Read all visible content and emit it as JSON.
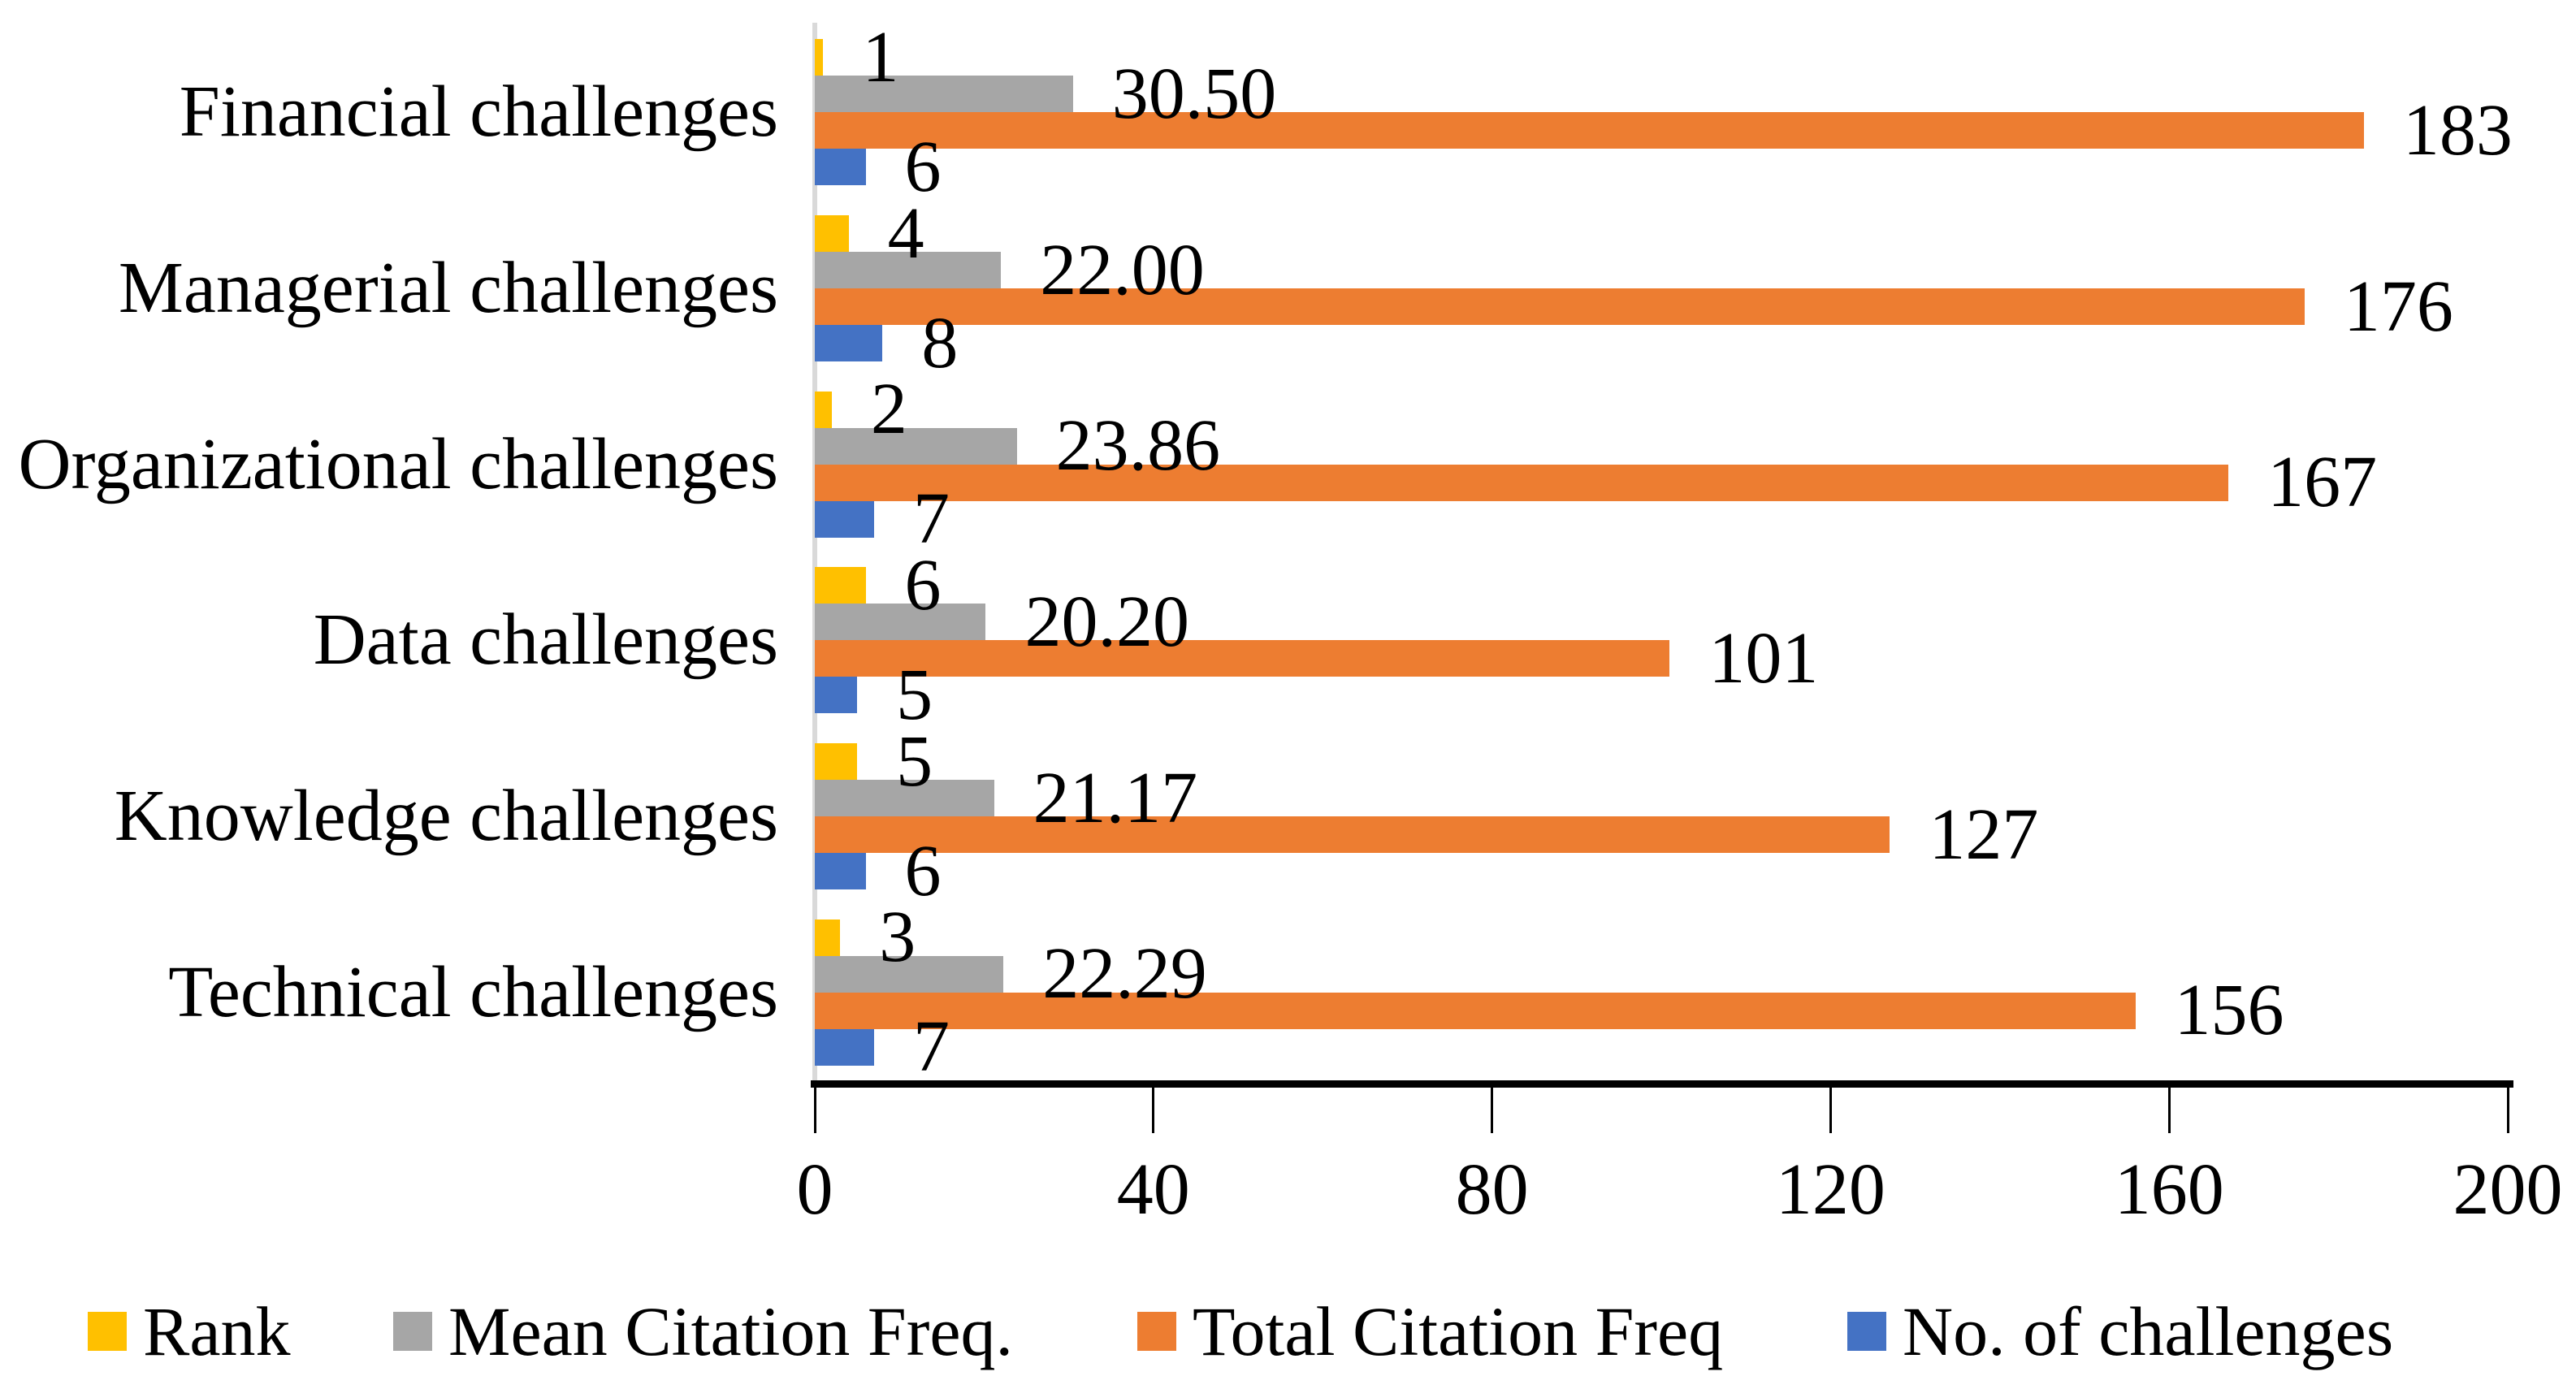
{
  "figure": {
    "background": "#FFFFFF",
    "text_color": "#000000"
  },
  "axes": {
    "x_axis_line_color": "#000000",
    "y_axis_line_color": "#D9D9D9",
    "tick_color": "#000000"
  },
  "chart_data": {
    "type": "bar",
    "orientation": "horizontal",
    "title": "",
    "xlabel": "",
    "ylabel": "",
    "xlim": [
      0,
      200
    ],
    "xticks": [
      "0",
      "40",
      "80",
      "120",
      "160",
      "200"
    ],
    "grid": false,
    "legend_position": "bottom",
    "categories": [
      "Financial challenges",
      "Managerial challenges",
      "Organizational challenges",
      "Data challenges",
      "Knowledge challenges",
      "Technical challenges"
    ],
    "series": [
      {
        "name": "Rank",
        "color": "#FFC000",
        "values": [
          1,
          4,
          2,
          6,
          5,
          3
        ],
        "labels": [
          "1",
          "4",
          "2",
          "6",
          "5",
          "3"
        ]
      },
      {
        "name": "Mean Citation Freq.",
        "color": "#A6A6A6",
        "values": [
          30.5,
          22.0,
          23.86,
          20.2,
          21.17,
          22.29
        ],
        "labels": [
          "30.50",
          "22.00",
          "23.86",
          "20.20",
          "21.17",
          "22.29"
        ]
      },
      {
        "name": "Total Citation Freq",
        "color": "#ED7D31",
        "values": [
          183,
          176,
          167,
          101,
          127,
          156
        ],
        "labels": [
          "183",
          "176",
          "167",
          "101",
          "127",
          "156"
        ]
      },
      {
        "name": "No. of challenges",
        "color": "#4472C4",
        "values": [
          6,
          8,
          7,
          5,
          6,
          7
        ],
        "labels": [
          "6",
          "8",
          "7",
          "5",
          "6",
          "7"
        ]
      }
    ]
  }
}
